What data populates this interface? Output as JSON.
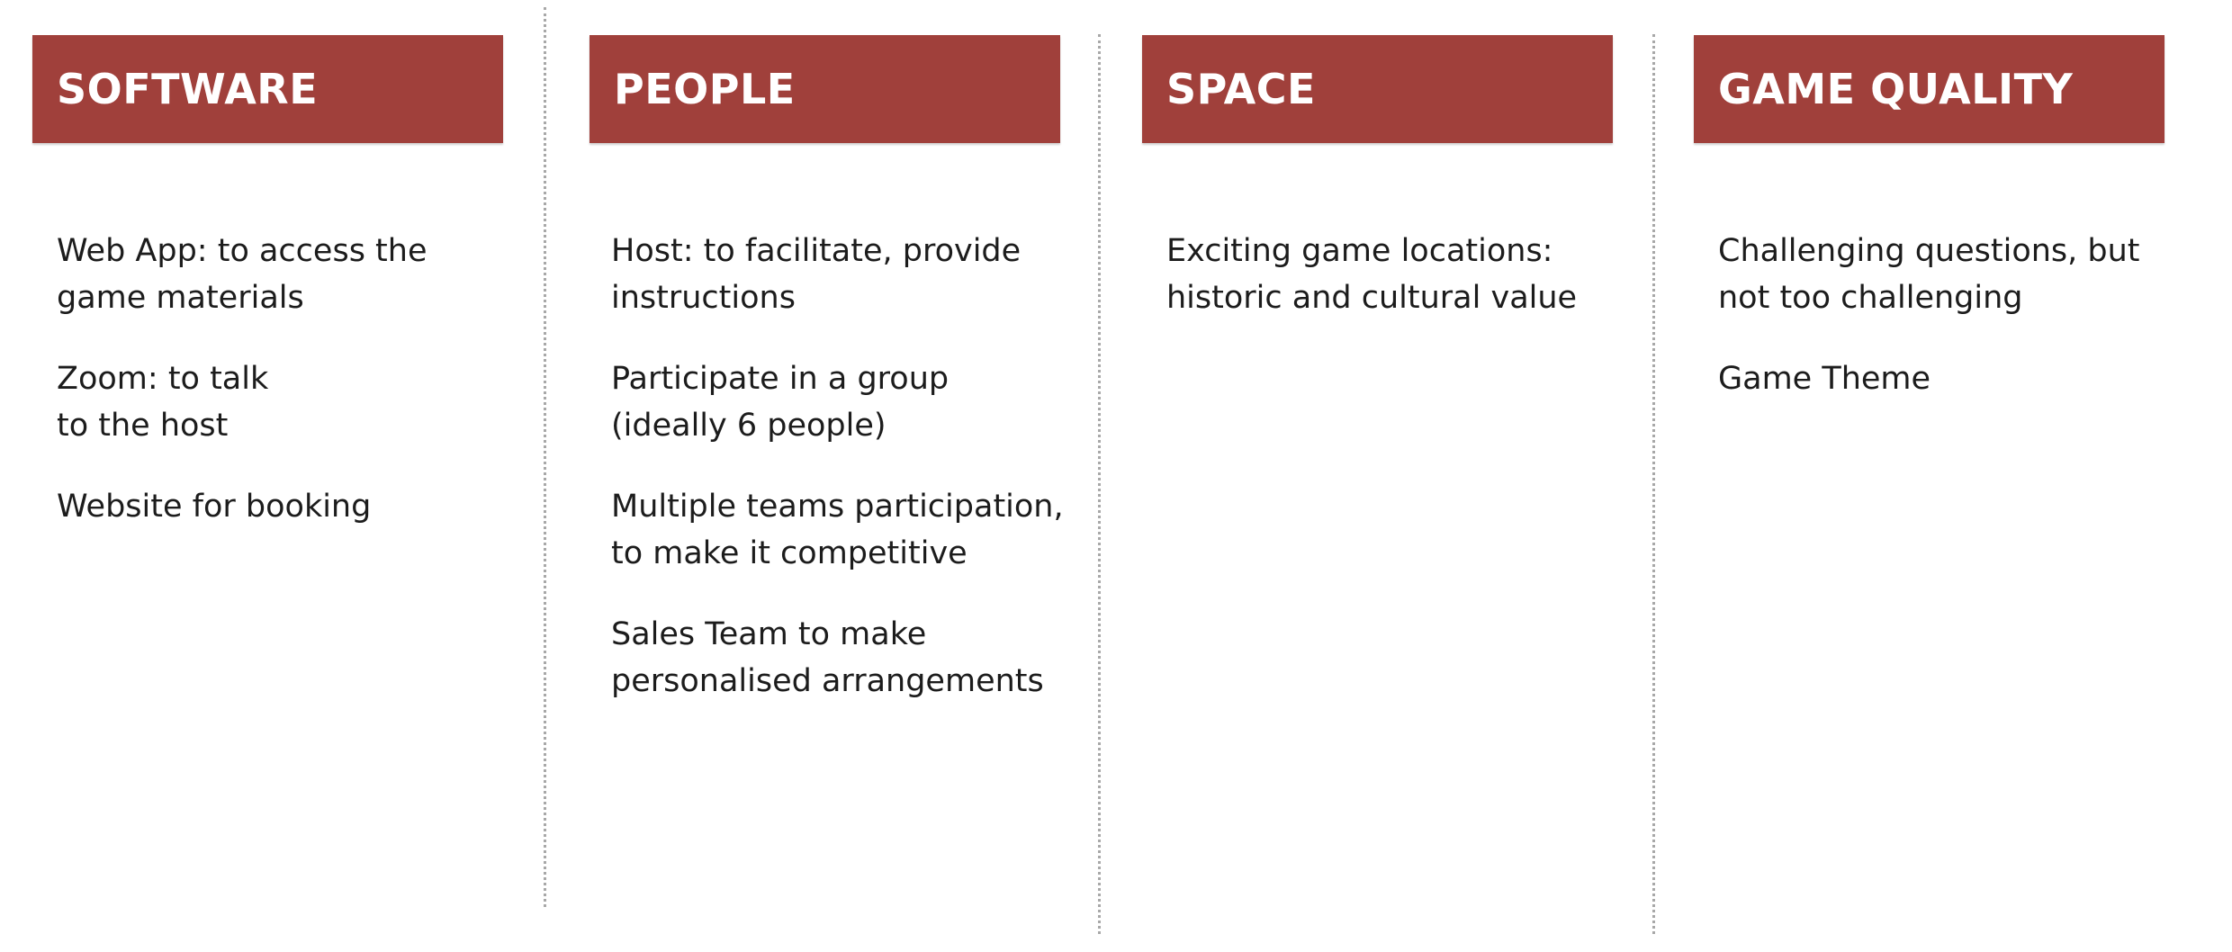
{
  "colors": {
    "header_background": "#a0403b",
    "header_text": "#ffffff",
    "body_text": "#1c1c1c",
    "divider": "#a8a8a8"
  },
  "columns": [
    {
      "title": "SOFTWARE",
      "items": [
        "Web App: to access the game materials",
        "Zoom: to talk\nto the host",
        "Website for booking"
      ]
    },
    {
      "title": "PEOPLE",
      "items": [
        "Host: to facilitate, provide instructions",
        "Participate in a group (ideally 6 people)",
        "Multiple teams participation, to make it competitive",
        "Sales Team to make personalised arrangements"
      ]
    },
    {
      "title": "SPACE",
      "items": [
        "Exciting game locations: historic and cultural value"
      ]
    },
    {
      "title": "GAME QUALITY",
      "items": [
        "Challenging questions, but not too challenging",
        "Game Theme"
      ]
    }
  ]
}
